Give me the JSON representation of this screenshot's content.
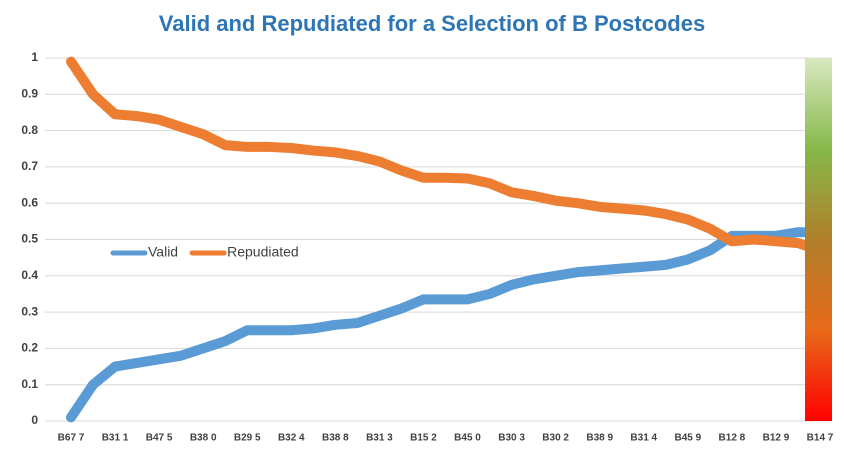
{
  "chart_data": {
    "type": "line",
    "title": "Valid and Repudiated for a Selection of B Postcodes",
    "categories": [
      "B67 7",
      null,
      "B31 1",
      null,
      "B47 5",
      null,
      "B38 0",
      null,
      "B29 5",
      null,
      "B32 4",
      null,
      "B38 8",
      null,
      "B31 3",
      null,
      "B15 2",
      null,
      "B45 0",
      null,
      "B30 3",
      null,
      "B30 2",
      null,
      "B38 9",
      null,
      "B31 4",
      null,
      "B45 9",
      null,
      "B12 8",
      null,
      "B12 9",
      null,
      "B14 7"
    ],
    "series": [
      {
        "name": "Valid",
        "color": "#5b9bd5",
        "values": [
          0.01,
          0.1,
          0.15,
          0.16,
          0.17,
          0.18,
          0.2,
          0.22,
          0.25,
          0.25,
          0.25,
          0.255,
          0.265,
          0.27,
          0.29,
          0.31,
          0.335,
          0.335,
          0.335,
          0.35,
          0.375,
          0.39,
          0.4,
          0.41,
          0.415,
          0.42,
          0.425,
          0.43,
          0.445,
          0.47,
          0.51,
          0.51,
          0.51,
          0.52,
          0.52
        ]
      },
      {
        "name": "Repudiated",
        "color": "#ed7d31",
        "values": [
          0.99,
          0.9,
          0.845,
          0.84,
          0.83,
          0.81,
          0.79,
          0.76,
          0.755,
          0.755,
          0.752,
          0.745,
          0.74,
          0.73,
          0.715,
          0.69,
          0.67,
          0.67,
          0.668,
          0.655,
          0.63,
          0.62,
          0.607,
          0.6,
          0.59,
          0.585,
          0.58,
          0.57,
          0.555,
          0.53,
          0.495,
          0.5,
          0.495,
          0.49,
          0.47
        ]
      }
    ],
    "ylim": [
      0,
      1
    ],
    "yticks": [
      0,
      0.1,
      0.2,
      0.3,
      0.4,
      0.5,
      0.6,
      0.7,
      0.8,
      0.9,
      1
    ],
    "grid": true,
    "legend": "left"
  }
}
